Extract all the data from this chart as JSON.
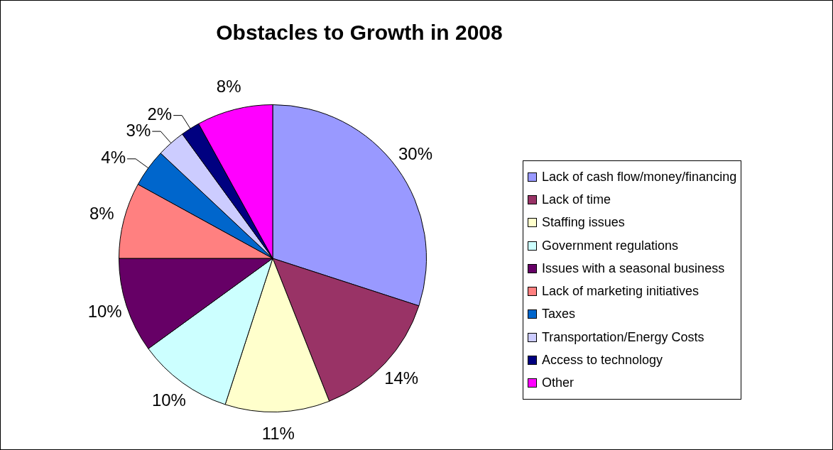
{
  "chart_data": {
    "type": "pie",
    "title": "Obstacles to Growth in 2008",
    "categories": [
      "Lack of cash flow/money/financing",
      "Lack of time",
      "Staffing issues",
      "Government regulations",
      "Issues with a seasonal business",
      "Lack of marketing initiatives",
      "Taxes",
      "Transportation/Energy Costs",
      "Access to technology",
      "Other"
    ],
    "values": [
      30,
      14,
      11,
      10,
      10,
      8,
      4,
      3,
      2,
      8
    ],
    "colors": [
      "#9999ff",
      "#993366",
      "#ffffcc",
      "#ccffff",
      "#660066",
      "#ff8080",
      "#0066cc",
      "#ccccff",
      "#000080",
      "#ff00ff"
    ],
    "value_labels": [
      "30%",
      "14%",
      "11%",
      "10%",
      "10%",
      "8%",
      "4%",
      "3%",
      "2%",
      "8%"
    ],
    "legend": "right"
  }
}
